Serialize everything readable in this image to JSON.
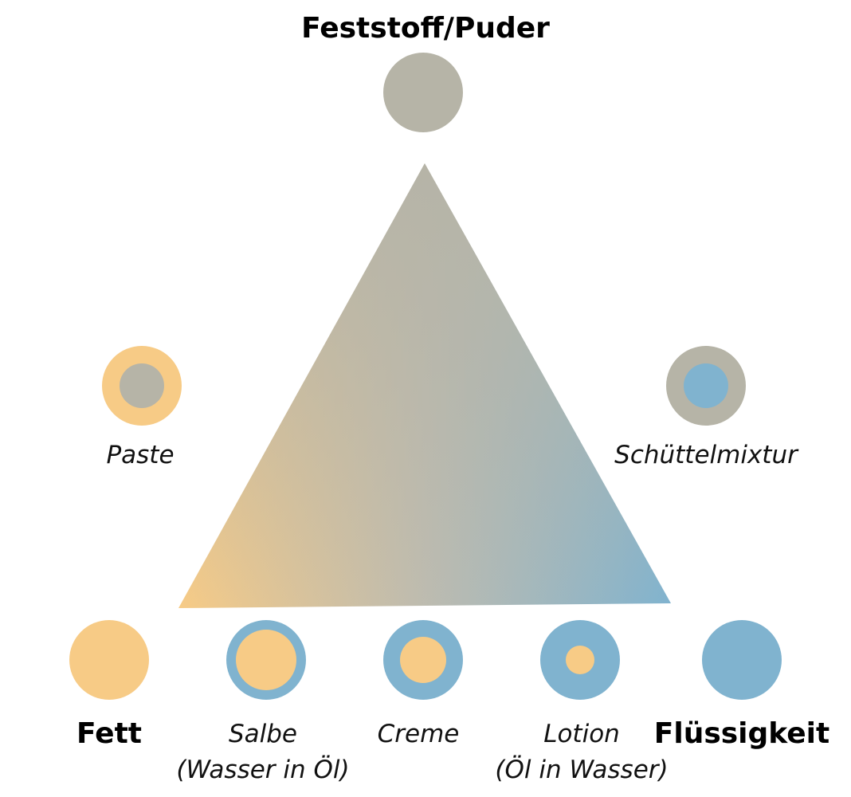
{
  "colors": {
    "solid": "#b6b4a7",
    "fat": "#f7cb86",
    "liquid": "#80b3cf",
    "background": "#ffffff"
  },
  "corners": {
    "top": "Feststoff/Puder",
    "left": "Fett",
    "right": "Flüssigkeit"
  },
  "mixtures": {
    "paste": "Paste",
    "shake_lotion": "Schüttelmixtur",
    "ointment": "Salbe",
    "ointment_sub": "(Wasser in Öl)",
    "cream": "Creme",
    "lotion": "Lotion",
    "lotion_sub": "(Öl in Wasser)"
  }
}
